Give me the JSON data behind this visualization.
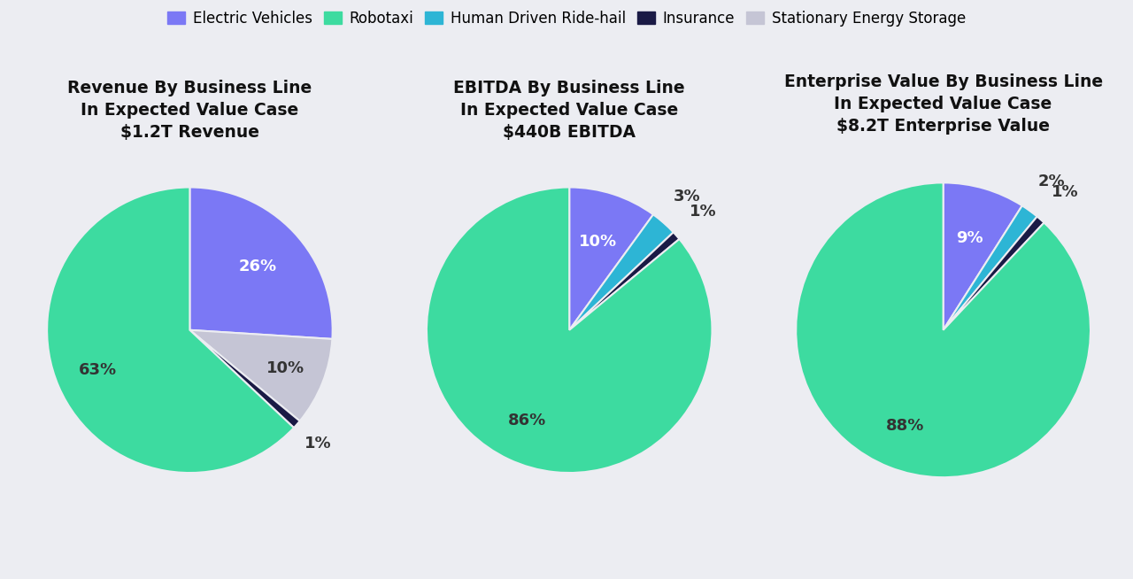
{
  "background_color": "#ecedf2",
  "legend_items": [
    {
      "label": "Electric Vehicles",
      "color": "#7b78f5"
    },
    {
      "label": "Robotaxi",
      "color": "#3ddba0"
    },
    {
      "label": "Human Driven Ride-hail",
      "color": "#2db5d5"
    },
    {
      "label": "Insurance",
      "color": "#1a1a45"
    },
    {
      "label": "Stationary Energy Storage",
      "color": "#c5c5d5"
    }
  ],
  "charts": [
    {
      "title": "Revenue By Business Line\nIn Expected Value Case\n$1.2T Revenue",
      "slices": [
        {
          "label": "Electric Vehicles",
          "pct": 26,
          "color": "#7b78f5"
        },
        {
          "label": "Stationary Energy Storage",
          "pct": 10,
          "color": "#c5c5d5"
        },
        {
          "label": "Insurance",
          "pct": 1,
          "color": "#1a1a45"
        },
        {
          "label": "Robotaxi",
          "pct": 63,
          "color": "#3ddba0"
        }
      ],
      "pct_labels": [
        {
          "text": "26%",
          "color": "white",
          "outside": false,
          "r": 0.65
        },
        {
          "text": "10%",
          "color": "#333333",
          "outside": false,
          "r": 0.72
        },
        {
          "text": "1%",
          "color": "#333333",
          "outside": true,
          "r": 1.2
        },
        {
          "text": "63%",
          "color": "#333333",
          "outside": false,
          "r": 0.7
        }
      ],
      "startangle": 90,
      "counterclock": false
    },
    {
      "title": "EBITDA By Business Line\nIn Expected Value Case\n$440B EBITDA",
      "slices": [
        {
          "label": "Electric Vehicles",
          "pct": 10,
          "color": "#7b78f5"
        },
        {
          "label": "Human Driven Ride-hail",
          "pct": 3,
          "color": "#2db5d5"
        },
        {
          "label": "Insurance",
          "pct": 1,
          "color": "#1a1a45"
        },
        {
          "label": "Robotaxi",
          "pct": 86,
          "color": "#3ddba0"
        }
      ],
      "pct_labels": [
        {
          "text": "10%",
          "color": "white",
          "outside": false,
          "r": 0.65
        },
        {
          "text": "3%",
          "color": "#333333",
          "outside": true,
          "r": 1.25
        },
        {
          "text": "1%",
          "color": "#333333",
          "outside": true,
          "r": 1.25
        },
        {
          "text": "86%",
          "color": "#333333",
          "outside": false,
          "r": 0.7
        }
      ],
      "startangle": 90,
      "counterclock": false
    },
    {
      "title": "Enterprise Value By Business Line\nIn Expected Value Case\n$8.2T Enterprise Value",
      "slices": [
        {
          "label": "Electric Vehicles",
          "pct": 9,
          "color": "#7b78f5"
        },
        {
          "label": "Human Driven Ride-hail",
          "pct": 2,
          "color": "#2db5d5"
        },
        {
          "label": "Insurance",
          "pct": 1,
          "color": "#1a1a45"
        },
        {
          "label": "Robotaxi",
          "pct": 88,
          "color": "#3ddba0"
        }
      ],
      "pct_labels": [
        {
          "text": "9%",
          "color": "white",
          "outside": false,
          "r": 0.65
        },
        {
          "text": "2%",
          "color": "#333333",
          "outside": true,
          "r": 1.25
        },
        {
          "text": "1%",
          "color": "#333333",
          "outside": true,
          "r": 1.25
        },
        {
          "text": "88%",
          "color": "#333333",
          "outside": false,
          "r": 0.7
        }
      ],
      "startangle": 90,
      "counterclock": false
    }
  ],
  "title_fontsize": 13.5,
  "label_fontsize": 13,
  "legend_fontsize": 12
}
